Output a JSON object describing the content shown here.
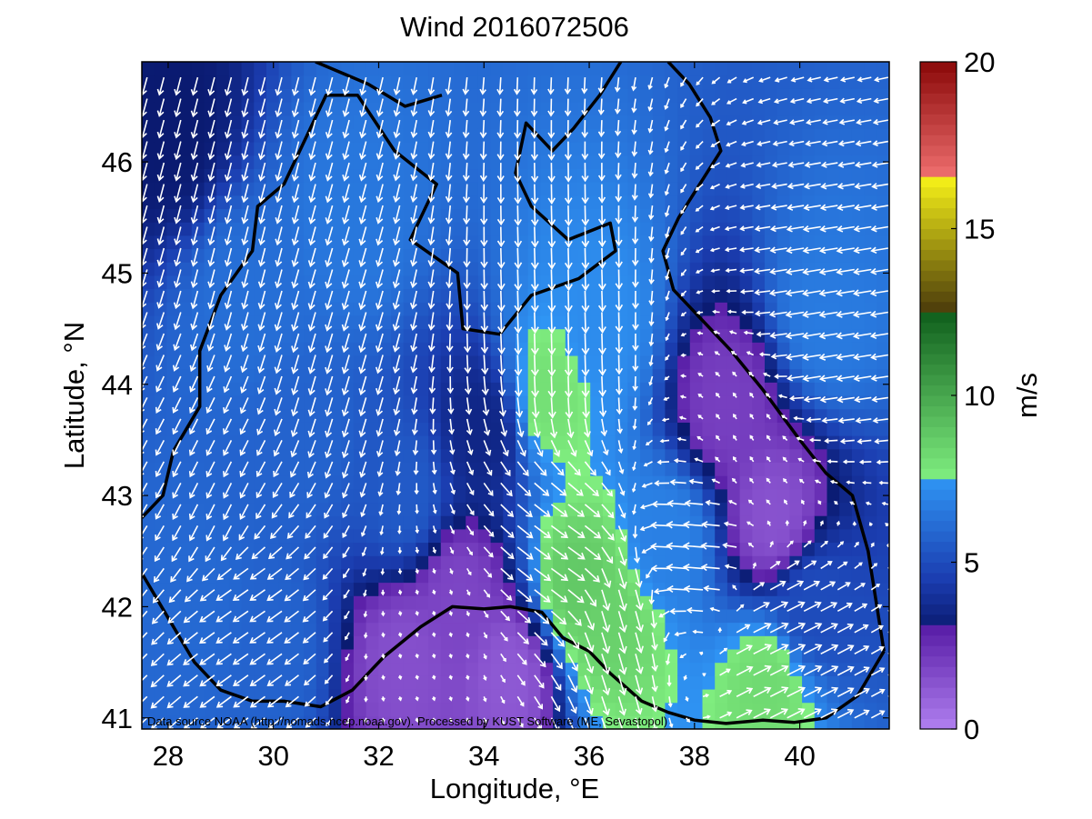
{
  "chart_data": {
    "type": "heatmap",
    "title": "Wind 2016072506",
    "xlabel": "Longitude, °E",
    "ylabel": "Latitude, °N",
    "xlim": [
      27.5,
      41.7
    ],
    "ylim": [
      40.9,
      46.9
    ],
    "x_ticks": [
      28,
      30,
      32,
      34,
      36,
      38,
      40
    ],
    "y_ticks": [
      41,
      42,
      43,
      44,
      45,
      46
    ],
    "colorbar": {
      "label": "m/s",
      "range": [
        0,
        20
      ],
      "ticks": [
        0,
        5,
        10,
        15,
        20
      ],
      "bands": [
        {
          "from": 0,
          "to": 3,
          "colors": [
            "#b080f0",
            "#5a1fa8"
          ]
        },
        {
          "from": 3,
          "to": 4.5,
          "colors": [
            "#0a1a70",
            "#1b3db0"
          ]
        },
        {
          "from": 4.5,
          "to": 7.5,
          "colors": [
            "#1b3db0",
            "#2f95f4"
          ]
        },
        {
          "from": 7.5,
          "to": 12.5,
          "colors": [
            "#80ee80",
            "#0f5e1c"
          ]
        },
        {
          "from": 12.5,
          "to": 16.5,
          "colors": [
            "#4a3a0a",
            "#f5f018"
          ]
        },
        {
          "from": 16.5,
          "to": 20,
          "colors": [
            "#f07070",
            "#8a0808"
          ]
        }
      ]
    },
    "speed_field": [
      {
        "lon": 29.5,
        "lat": 44.8,
        "speed": 6.2
      },
      {
        "lon": 31.5,
        "lat": 45.5,
        "speed": 6.5
      },
      {
        "lon": 30.5,
        "lat": 43.5,
        "speed": 5.8
      },
      {
        "lon": 32.5,
        "lat": 43.0,
        "speed": 5.5
      },
      {
        "lon": 36.2,
        "lat": 44.5,
        "speed": 7.2
      },
      {
        "lon": 35.2,
        "lat": 43.9,
        "speed": 8.0
      },
      {
        "lon": 35.8,
        "lat": 42.2,
        "speed": 8.8
      },
      {
        "lon": 36.4,
        "lat": 41.85,
        "speed": 8.5
      },
      {
        "lon": 39.4,
        "lat": 41.3,
        "speed": 8.2
      },
      {
        "lon": 37.5,
        "lat": 42.6,
        "speed": 6.8
      },
      {
        "lon": 40.5,
        "lat": 44.6,
        "speed": 6.6
      },
      {
        "lon": 28.5,
        "lat": 42.0,
        "speed": 6.0
      },
      {
        "lon": 30.0,
        "lat": 41.6,
        "speed": 5.8
      },
      {
        "lon": 34.5,
        "lat": 41.4,
        "speed": 1.2
      },
      {
        "lon": 32.5,
        "lat": 41.5,
        "speed": 1.5
      },
      {
        "lon": 39.5,
        "lat": 42.8,
        "speed": 1.4
      },
      {
        "lon": 38.6,
        "lat": 43.8,
        "speed": 2.0
      },
      {
        "lon": 33.5,
        "lat": 42.1,
        "speed": 1.8
      },
      {
        "lon": 28.0,
        "lat": 46.3,
        "speed": 3.0
      },
      {
        "lon": 34.0,
        "lat": 43.6,
        "speed": 3.5
      },
      {
        "lon": 40.2,
        "lat": 42.0,
        "speed": 5.0
      }
    ],
    "wind_vectors": [
      {
        "lon": 29.5,
        "lat": 45.5,
        "u": -1.5,
        "v": -6.0
      },
      {
        "lon": 31.0,
        "lat": 44.5,
        "u": -1.8,
        "v": -6.2
      },
      {
        "lon": 29.0,
        "lat": 43.0,
        "u": -2.5,
        "v": -5.0
      },
      {
        "lon": 29.5,
        "lat": 42.0,
        "u": -5.0,
        "v": -3.5
      },
      {
        "lon": 35.5,
        "lat": 44.5,
        "u": 0.2,
        "v": -7.0
      },
      {
        "lon": 35.5,
        "lat": 42.5,
        "u": 5.5,
        "v": -4.0
      },
      {
        "lon": 36.5,
        "lat": 42.0,
        "u": 2.0,
        "v": -7.0
      },
      {
        "lon": 38.0,
        "lat": 42.5,
        "u": -6.5,
        "v": 0.5
      },
      {
        "lon": 39.5,
        "lat": 41.6,
        "u": 6.0,
        "v": 3.0
      },
      {
        "lon": 40.5,
        "lat": 44.5,
        "u": -6.0,
        "v": -1.0
      },
      {
        "lon": 39.0,
        "lat": 43.5,
        "u": -1.0,
        "v": 1.5
      },
      {
        "lon": 33.0,
        "lat": 41.5,
        "u": 0.3,
        "v": -1.2
      }
    ],
    "coastline": [
      [
        [
          27.5,
          42.3
        ],
        [
          28.0,
          41.9
        ],
        [
          28.5,
          41.5
        ],
        [
          29.0,
          41.25
        ],
        [
          29.6,
          41.15
        ],
        [
          30.2,
          41.15
        ],
        [
          30.9,
          41.1
        ],
        [
          31.5,
          41.25
        ],
        [
          32.1,
          41.55
        ],
        [
          32.8,
          41.82
        ],
        [
          33.4,
          42.0
        ],
        [
          34.0,
          41.98
        ],
        [
          34.5,
          42.0
        ],
        [
          35.1,
          41.95
        ],
        [
          35.5,
          41.72
        ],
        [
          36.0,
          41.6
        ],
        [
          36.4,
          41.4
        ],
        [
          37.0,
          41.15
        ],
        [
          37.5,
          41.05
        ],
        [
          38.0,
          40.98
        ],
        [
          38.6,
          40.95
        ],
        [
          39.3,
          40.98
        ],
        [
          39.9,
          40.96
        ],
        [
          40.5,
          41.0
        ],
        [
          41.1,
          41.2
        ],
        [
          41.6,
          41.6
        ]
      ],
      [
        [
          41.6,
          41.6
        ],
        [
          41.3,
          42.5
        ],
        [
          41.0,
          43.0
        ],
        [
          40.5,
          43.2
        ],
        [
          40.0,
          43.5
        ],
        [
          39.3,
          43.95
        ],
        [
          38.7,
          44.3
        ],
        [
          38.2,
          44.55
        ],
        [
          37.6,
          44.85
        ],
        [
          37.4,
          45.2
        ],
        [
          37.7,
          45.5
        ],
        [
          38.1,
          45.8
        ],
        [
          38.5,
          46.1
        ],
        [
          38.3,
          46.4
        ],
        [
          37.9,
          46.7
        ],
        [
          37.5,
          46.9
        ]
      ],
      [
        [
          36.6,
          46.9
        ],
        [
          36.2,
          46.6
        ],
        [
          35.7,
          46.3
        ],
        [
          35.3,
          46.1
        ],
        [
          34.8,
          46.35
        ],
        [
          34.6,
          45.9
        ],
        [
          34.9,
          45.6
        ],
        [
          35.6,
          45.3
        ],
        [
          36.4,
          45.45
        ],
        [
          36.5,
          45.2
        ],
        [
          35.8,
          44.95
        ],
        [
          34.9,
          44.8
        ],
        [
          34.3,
          44.45
        ],
        [
          33.6,
          44.5
        ],
        [
          33.5,
          45.0
        ],
        [
          32.6,
          45.3
        ],
        [
          33.1,
          45.8
        ],
        [
          32.3,
          46.1
        ],
        [
          31.6,
          46.6
        ],
        [
          31.0,
          46.6
        ],
        [
          30.6,
          46.2
        ],
        [
          30.2,
          45.8
        ],
        [
          29.7,
          45.6
        ],
        [
          29.6,
          45.2
        ],
        [
          29.0,
          44.8
        ],
        [
          28.6,
          44.3
        ],
        [
          28.6,
          43.8
        ],
        [
          28.1,
          43.4
        ],
        [
          27.9,
          43.0
        ],
        [
          27.5,
          42.8
        ]
      ],
      [
        [
          30.8,
          46.9
        ],
        [
          31.8,
          46.7
        ],
        [
          32.5,
          46.5
        ],
        [
          33.2,
          46.6
        ]
      ]
    ],
    "source_note": "Data source NOAA (http://nomads.ncep.noaa.gov). Processed by KUST Software (ME, Sevastopol)"
  }
}
